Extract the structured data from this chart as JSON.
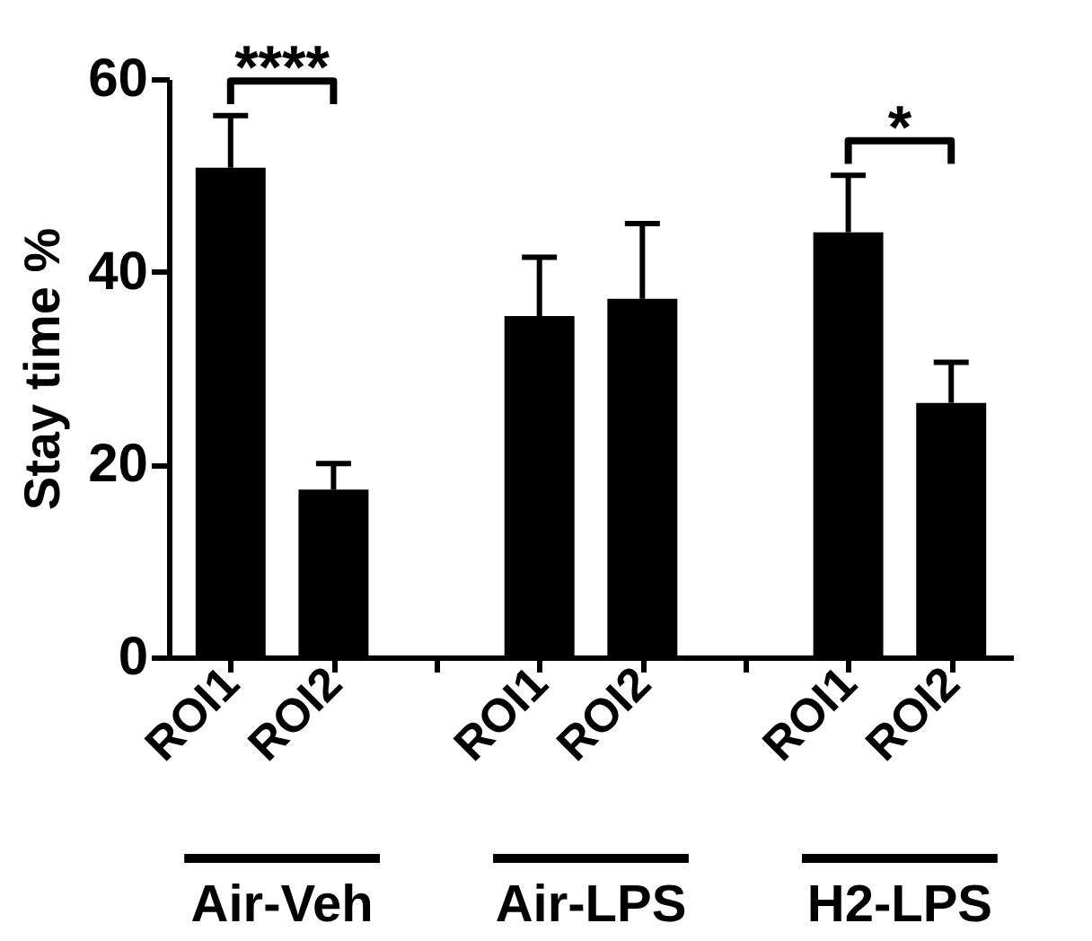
{
  "chart_data": {
    "type": "bar",
    "ylabel": "Stay time %",
    "categories": [
      "ROI1",
      "ROI2",
      null,
      "ROI1",
      "ROI2",
      null,
      "ROI1",
      "ROI2"
    ],
    "series": [
      {
        "color": "#000000",
        "values": [
          50.8,
          17.4,
          null,
          35.4,
          37.2,
          null,
          44.1,
          26.4
        ],
        "errors": [
          [
            50.8,
            56.2
          ],
          [
            17.4,
            20.1
          ],
          null,
          [
            35.4,
            41.5
          ],
          [
            37.2,
            45.0
          ],
          null,
          [
            44.1,
            50.0
          ],
          [
            26.4,
            30.6
          ]
        ]
      }
    ],
    "ylim": [
      0,
      60
    ],
    "yticks": [
      0,
      20,
      40,
      60
    ],
    "grid": false,
    "annotations": [
      "Air-Veh",
      "Air-LPS",
      "H2-LPS",
      "****",
      "*"
    ]
  }
}
